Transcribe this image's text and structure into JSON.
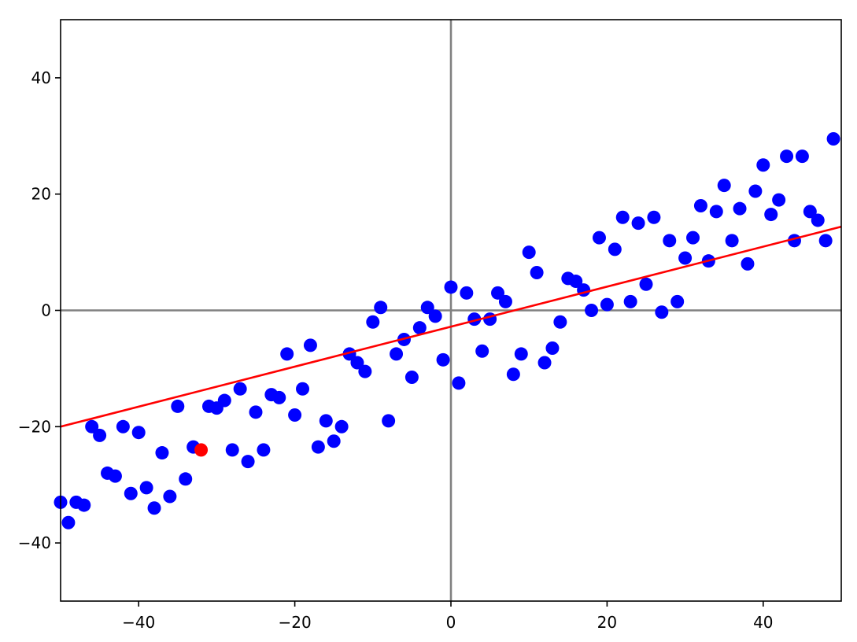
{
  "chart_data": {
    "type": "scatter",
    "title": "",
    "xlabel": "",
    "ylabel": "",
    "xlim": [
      -50,
      50
    ],
    "ylim": [
      -50,
      50
    ],
    "grid": false,
    "legend": "none",
    "x_ticks": [
      {
        "value": -40,
        "label": "−40"
      },
      {
        "value": -20,
        "label": "−20"
      },
      {
        "value": 0,
        "label": "0"
      },
      {
        "value": 20,
        "label": "20"
      },
      {
        "value": 40,
        "label": "40"
      }
    ],
    "y_ticks": [
      {
        "value": -40,
        "label": "−40"
      },
      {
        "value": -20,
        "label": "−20"
      },
      {
        "value": 0,
        "label": "0"
      },
      {
        "value": 20,
        "label": "20"
      },
      {
        "value": 40,
        "label": "40"
      }
    ],
    "reference_lines": {
      "x": 0,
      "y": 0,
      "color": "#808080"
    },
    "fit_line": {
      "x": [
        -50,
        50
      ],
      "y": [
        -20,
        14.4
      ],
      "color": "#ff0000"
    },
    "series": [
      {
        "color": "#0000ff",
        "points": [
          [
            -50,
            -33
          ],
          [
            -49,
            -36.5
          ],
          [
            -48,
            -33
          ],
          [
            -47,
            -33.5
          ],
          [
            -46,
            -20
          ],
          [
            -45,
            -21.5
          ],
          [
            -44,
            -28
          ],
          [
            -43,
            -28.5
          ],
          [
            -42,
            -20
          ],
          [
            -41,
            -31.5
          ],
          [
            -40,
            -21
          ],
          [
            -39,
            -30.5
          ],
          [
            -38,
            -34
          ],
          [
            -37,
            -24.5
          ],
          [
            -36,
            -32
          ],
          [
            -35,
            -16.5
          ],
          [
            -34,
            -29
          ],
          [
            -33,
            -23.5
          ],
          [
            -31,
            -16.5
          ],
          [
            -30,
            -16.8
          ],
          [
            -29,
            -15.5
          ],
          [
            -28,
            -24
          ],
          [
            -27,
            -13.5
          ],
          [
            -26,
            -26
          ],
          [
            -25,
            -17.5
          ],
          [
            -24,
            -24
          ],
          [
            -23,
            -14.5
          ],
          [
            -22,
            -15
          ],
          [
            -21,
            -7.5
          ],
          [
            -20,
            -18
          ],
          [
            -19,
            -13.5
          ],
          [
            -18,
            -6
          ],
          [
            -17,
            -23.5
          ],
          [
            -16,
            -19
          ],
          [
            -15,
            -22.5
          ],
          [
            -14,
            -20
          ],
          [
            -13,
            -7.5
          ],
          [
            -12,
            -9
          ],
          [
            -11,
            -10.5
          ],
          [
            -10,
            -2
          ],
          [
            -9,
            0.5
          ],
          [
            -8,
            -19
          ],
          [
            -7,
            -7.5
          ],
          [
            -6,
            -5
          ],
          [
            -5,
            -11.5
          ],
          [
            -4,
            -3
          ],
          [
            -3,
            0.5
          ],
          [
            -2,
            -1
          ],
          [
            -1,
            -8.5
          ],
          [
            0,
            4
          ],
          [
            1,
            -12.5
          ],
          [
            2,
            3
          ],
          [
            3,
            -1.5
          ],
          [
            4,
            -7
          ],
          [
            5,
            -1.5
          ],
          [
            6,
            3
          ],
          [
            7,
            1.5
          ],
          [
            8,
            -11
          ],
          [
            9,
            -7.5
          ],
          [
            10,
            10
          ],
          [
            11,
            6.5
          ],
          [
            12,
            -9
          ],
          [
            13,
            -6.5
          ],
          [
            14,
            -2
          ],
          [
            15,
            5.5
          ],
          [
            16,
            5
          ],
          [
            17,
            3.5
          ],
          [
            18,
            0
          ],
          [
            19,
            12.5
          ],
          [
            20,
            1
          ],
          [
            21,
            10.5
          ],
          [
            22,
            16
          ],
          [
            23,
            1.5
          ],
          [
            24,
            15
          ],
          [
            25,
            4.5
          ],
          [
            26,
            16
          ],
          [
            27,
            -0.3
          ],
          [
            28,
            12
          ],
          [
            29,
            1.5
          ],
          [
            30,
            9
          ],
          [
            31,
            12.5
          ],
          [
            32,
            18
          ],
          [
            33,
            8.5
          ],
          [
            34,
            17
          ],
          [
            35,
            21.5
          ],
          [
            36,
            12
          ],
          [
            37,
            17.5
          ],
          [
            38,
            8
          ],
          [
            39,
            20.5
          ],
          [
            40,
            25
          ],
          [
            41,
            16.5
          ],
          [
            42,
            19
          ],
          [
            43,
            26.5
          ],
          [
            44,
            12
          ],
          [
            45,
            26.5
          ],
          [
            46,
            17
          ],
          [
            47,
            15.5
          ],
          [
            48,
            12
          ],
          [
            49,
            29.5
          ]
        ]
      },
      {
        "color": "#ff0000",
        "points": [
          [
            -32,
            -24
          ]
        ]
      }
    ]
  }
}
